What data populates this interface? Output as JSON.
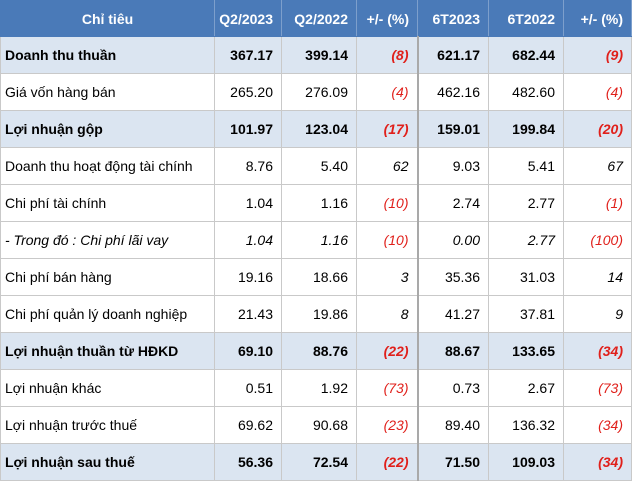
{
  "header": {
    "label": "Chỉ tiêu",
    "q2_2023": "Q2/2023",
    "q2_2022": "Q2/2022",
    "q_change": "+/- (%)",
    "h1_2023": "6T2023",
    "h1_2022": "6T2022",
    "h_change": "+/- (%)"
  },
  "rows": [
    {
      "label": "Doanh thu thuần",
      "q23": "367.17",
      "q22": "399.14",
      "qc": "(8)",
      "h23": "621.17",
      "h22": "682.44",
      "hc": "(9)"
    },
    {
      "label": "Giá vốn hàng bán",
      "q23": "265.20",
      "q22": "276.09",
      "qc": "(4)",
      "h23": "462.16",
      "h22": "482.60",
      "hc": "(4)"
    },
    {
      "label": "Lợi nhuận gộp",
      "q23": "101.97",
      "q22": "123.04",
      "qc": "(17)",
      "h23": "159.01",
      "h22": "199.84",
      "hc": "(20)"
    },
    {
      "label": "Doanh thu hoạt động tài chính",
      "q23": "8.76",
      "q22": "5.40",
      "qc": "62",
      "h23": "9.03",
      "h22": "5.41",
      "hc": "67"
    },
    {
      "label": "Chi phí tài chính",
      "q23": "1.04",
      "q22": "1.16",
      "qc": "(10)",
      "h23": "2.74",
      "h22": "2.77",
      "hc": "(1)"
    },
    {
      "label": "- Trong đó : Chi phí lãi vay",
      "q23": "1.04",
      "q22": "1.16",
      "qc": "(10)",
      "h23": "0.00",
      "h22": "2.77",
      "hc": "(100)"
    },
    {
      "label": "Chi phí bán hàng",
      "q23": "19.16",
      "q22": "18.66",
      "qc": "3",
      "h23": "35.36",
      "h22": "31.03",
      "hc": "14"
    },
    {
      "label": "Chi phí quản lý doanh nghiệp",
      "q23": "21.43",
      "q22": "19.86",
      "qc": "8",
      "h23": "41.27",
      "h22": "37.81",
      "hc": "9"
    },
    {
      "label": "Lợi nhuận thuần từ HĐKD",
      "q23": "69.10",
      "q22": "88.76",
      "qc": "(22)",
      "h23": "88.67",
      "h22": "133.65",
      "hc": "(34)"
    },
    {
      "label": "Lợi nhuận khác",
      "q23": "0.51",
      "q22": "1.92",
      "qc": "(73)",
      "h23": "0.73",
      "h22": "2.67",
      "hc": "(73)"
    },
    {
      "label": "Lợi nhuận trước thuế",
      "q23": "69.62",
      "q22": "90.68",
      "qc": "(23)",
      "h23": "89.40",
      "h22": "136.32",
      "hc": "(34)"
    },
    {
      "label": "Lợi nhuận sau thuế",
      "q23": "56.36",
      "q22": "72.54",
      "qc": "(22)",
      "h23": "71.50",
      "h22": "109.03",
      "hc": "(34)"
    }
  ],
  "colors": {
    "header_bg": "#4a7ab8",
    "highlight_row_bg": "#dbe5f1",
    "negative_text": "#e0201b"
  }
}
